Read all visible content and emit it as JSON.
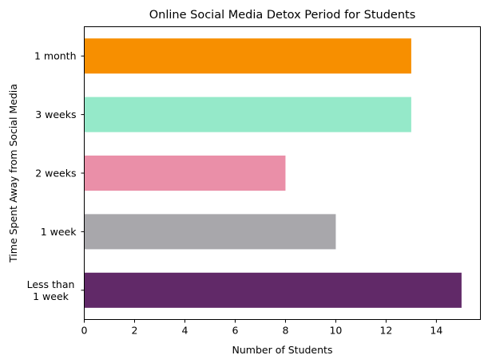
{
  "chart_data": {
    "type": "bar",
    "orientation": "horizontal",
    "title": "Online Social Media Detox Period for Students",
    "xlabel": "Number of Students",
    "ylabel": "Time Spent Away from Social Media",
    "categories": [
      [
        "Less than",
        "1 week"
      ],
      [
        "1 week"
      ],
      [
        "2 weeks"
      ],
      [
        "3 weeks"
      ],
      [
        "1 month"
      ]
    ],
    "values": [
      15,
      10,
      8,
      13,
      13
    ],
    "colors": [
      "#612968",
      "#a8a7ab",
      "#ea8fa8",
      "#95e9c9",
      "#f78f00"
    ],
    "xlim": [
      0,
      15.75
    ],
    "xticks": [
      0,
      2,
      4,
      6,
      8,
      10,
      12,
      14
    ],
    "grid": false,
    "legend": "none"
  }
}
